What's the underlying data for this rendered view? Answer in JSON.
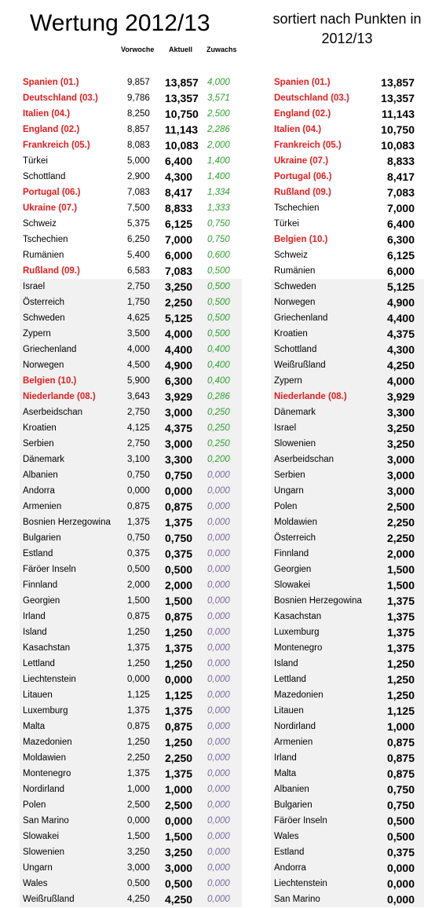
{
  "header": {
    "title": "Wertung 2012/13",
    "subtitle_line1": "sortiert nach Punkten in",
    "subtitle_line2": "2012/13",
    "col_prev": "Vorwoche",
    "col_current": "Aktuell",
    "col_gain": "Zuwachs"
  },
  "colors": {
    "highlight": "#e41e1e",
    "gain_positive": "#2fa12f",
    "gain_zero": "#7a6aa0",
    "shaded_row": "#f1f1f1"
  },
  "left_table": [
    {
      "name": "Spanien (01.)",
      "prev": "9,857",
      "cur": "13,857",
      "gain": "4,000",
      "hl": true
    },
    {
      "name": "Deutschland (03.)",
      "prev": "9,786",
      "cur": "13,357",
      "gain": "3,571",
      "hl": true
    },
    {
      "name": "Italien (04.)",
      "prev": "8,250",
      "cur": "10,750",
      "gain": "2,500",
      "hl": true
    },
    {
      "name": "England (02.)",
      "prev": "8,857",
      "cur": "11,143",
      "gain": "2,286",
      "hl": true
    },
    {
      "name": "Frankreich (05.)",
      "prev": "8,083",
      "cur": "10,083",
      "gain": "2,000",
      "hl": true
    },
    {
      "name": "Türkei",
      "prev": "5,000",
      "cur": "6,400",
      "gain": "1,400",
      "hl": false
    },
    {
      "name": "Schottland",
      "prev": "2,900",
      "cur": "4,300",
      "gain": "1,400",
      "hl": false
    },
    {
      "name": "Portugal (06.)",
      "prev": "7,083",
      "cur": "8,417",
      "gain": "1,334",
      "hl": true
    },
    {
      "name": "Ukraine (07.)",
      "prev": "7,500",
      "cur": "8,833",
      "gain": "1,333",
      "hl": true
    },
    {
      "name": "Schweiz",
      "prev": "5,375",
      "cur": "6,125",
      "gain": "0,750",
      "hl": false
    },
    {
      "name": "Tschechien",
      "prev": "6,250",
      "cur": "7,000",
      "gain": "0,750",
      "hl": false
    },
    {
      "name": "Rumänien",
      "prev": "5,400",
      "cur": "6,000",
      "gain": "0,600",
      "hl": false
    },
    {
      "name": "Rußland (09.)",
      "prev": "6,583",
      "cur": "7,083",
      "gain": "0,500",
      "hl": true
    },
    {
      "name": "Israel",
      "prev": "2,750",
      "cur": "3,250",
      "gain": "0,500",
      "hl": false
    },
    {
      "name": "Österreich",
      "prev": "1,750",
      "cur": "2,250",
      "gain": "0,500",
      "hl": false
    },
    {
      "name": "Schweden",
      "prev": "4,625",
      "cur": "5,125",
      "gain": "0,500",
      "hl": false
    },
    {
      "name": "Zypern",
      "prev": "3,500",
      "cur": "4,000",
      "gain": "0,500",
      "hl": false
    },
    {
      "name": "Griechenland",
      "prev": "4,000",
      "cur": "4,400",
      "gain": "0,400",
      "hl": false
    },
    {
      "name": "Norwegen",
      "prev": "4,500",
      "cur": "4,900",
      "gain": "0,400",
      "hl": false
    },
    {
      "name": "Belgien (10.)",
      "prev": "5,900",
      "cur": "6,300",
      "gain": "0,400",
      "hl": true
    },
    {
      "name": "Niederlande (08.)",
      "prev": "3,643",
      "cur": "3,929",
      "gain": "0,286",
      "hl": true
    },
    {
      "name": "Aserbeidschan",
      "prev": "2,750",
      "cur": "3,000",
      "gain": "0,250",
      "hl": false
    },
    {
      "name": "Kroatien",
      "prev": "4,125",
      "cur": "4,375",
      "gain": "0,250",
      "hl": false
    },
    {
      "name": "Serbien",
      "prev": "2,750",
      "cur": "3,000",
      "gain": "0,250",
      "hl": false
    },
    {
      "name": "Dänemark",
      "prev": "3,100",
      "cur": "3,300",
      "gain": "0,200",
      "hl": false
    },
    {
      "name": "Albanien",
      "prev": "0,750",
      "cur": "0,750",
      "gain": "0,000",
      "hl": false
    },
    {
      "name": "Andorra",
      "prev": "0,000",
      "cur": "0,000",
      "gain": "0,000",
      "hl": false
    },
    {
      "name": "Armenien",
      "prev": "0,875",
      "cur": "0,875",
      "gain": "0,000",
      "hl": false
    },
    {
      "name": "Bosnien Herzegowina",
      "prev": "1,375",
      "cur": "1,375",
      "gain": "0,000",
      "hl": false
    },
    {
      "name": "Bulgarien",
      "prev": "0,750",
      "cur": "0,750",
      "gain": "0,000",
      "hl": false
    },
    {
      "name": "Estland",
      "prev": "0,375",
      "cur": "0,375",
      "gain": "0,000",
      "hl": false
    },
    {
      "name": "Färöer Inseln",
      "prev": "0,500",
      "cur": "0,500",
      "gain": "0,000",
      "hl": false
    },
    {
      "name": "Finnland",
      "prev": "2,000",
      "cur": "2,000",
      "gain": "0,000",
      "hl": false
    },
    {
      "name": "Georgien",
      "prev": "1,500",
      "cur": "1,500",
      "gain": "0,000",
      "hl": false
    },
    {
      "name": "Irland",
      "prev": "0,875",
      "cur": "0,875",
      "gain": "0,000",
      "hl": false
    },
    {
      "name": "Island",
      "prev": "1,250",
      "cur": "1,250",
      "gain": "0,000",
      "hl": false
    },
    {
      "name": "Kasachstan",
      "prev": "1,375",
      "cur": "1,375",
      "gain": "0,000",
      "hl": false
    },
    {
      "name": "Lettland",
      "prev": "1,250",
      "cur": "1,250",
      "gain": "0,000",
      "hl": false
    },
    {
      "name": "Liechtenstein",
      "prev": "0,000",
      "cur": "0,000",
      "gain": "0,000",
      "hl": false
    },
    {
      "name": "Litauen",
      "prev": "1,125",
      "cur": "1,125",
      "gain": "0,000",
      "hl": false
    },
    {
      "name": "Luxemburg",
      "prev": "1,375",
      "cur": "1,375",
      "gain": "0,000",
      "hl": false
    },
    {
      "name": "Malta",
      "prev": "0,875",
      "cur": "0,875",
      "gain": "0,000",
      "hl": false
    },
    {
      "name": "Mazedonien",
      "prev": "1,250",
      "cur": "1,250",
      "gain": "0,000",
      "hl": false
    },
    {
      "name": "Moldawien",
      "prev": "2,250",
      "cur": "2,250",
      "gain": "0,000",
      "hl": false
    },
    {
      "name": "Montenegro",
      "prev": "1,375",
      "cur": "1,375",
      "gain": "0,000",
      "hl": false
    },
    {
      "name": "Nordirland",
      "prev": "1,000",
      "cur": "1,000",
      "gain": "0,000",
      "hl": false
    },
    {
      "name": "Polen",
      "prev": "2,500",
      "cur": "2,500",
      "gain": "0,000",
      "hl": false
    },
    {
      "name": "San Marino",
      "prev": "0,000",
      "cur": "0,000",
      "gain": "0,000",
      "hl": false
    },
    {
      "name": "Slowakei",
      "prev": "1,500",
      "cur": "1,500",
      "gain": "0,000",
      "hl": false
    },
    {
      "name": "Slowenien",
      "prev": "3,250",
      "cur": "3,250",
      "gain": "0,000",
      "hl": false
    },
    {
      "name": "Ungarn",
      "prev": "3,000",
      "cur": "3,000",
      "gain": "0,000",
      "hl": false
    },
    {
      "name": "Wales",
      "prev": "0,500",
      "cur": "0,500",
      "gain": "0,000",
      "hl": false
    },
    {
      "name": "Weißrußland",
      "prev": "4,250",
      "cur": "4,250",
      "gain": "0,000",
      "hl": false
    }
  ],
  "right_table": [
    {
      "name": "Spanien (01.)",
      "value": "13,857",
      "hl": true
    },
    {
      "name": "Deutschland (03.)",
      "value": "13,357",
      "hl": true
    },
    {
      "name": "England (02.)",
      "value": "11,143",
      "hl": true
    },
    {
      "name": "Italien (04.)",
      "value": "10,750",
      "hl": true
    },
    {
      "name": "Frankreich (05.)",
      "value": "10,083",
      "hl": true
    },
    {
      "name": "Ukraine (07.)",
      "value": "8,833",
      "hl": true
    },
    {
      "name": "Portugal (06.)",
      "value": "8,417",
      "hl": true
    },
    {
      "name": "Rußland (09.)",
      "value": "7,083",
      "hl": true
    },
    {
      "name": "Tschechien",
      "value": "7,000",
      "hl": false
    },
    {
      "name": "Türkei",
      "value": "6,400",
      "hl": false
    },
    {
      "name": "Belgien (10.)",
      "value": "6,300",
      "hl": true
    },
    {
      "name": "Schweiz",
      "value": "6,125",
      "hl": false
    },
    {
      "name": "Rumänien",
      "value": "6,000",
      "hl": false
    },
    {
      "name": "Schweden",
      "value": "5,125",
      "hl": false
    },
    {
      "name": "Norwegen",
      "value": "4,900",
      "hl": false
    },
    {
      "name": "Griechenland",
      "value": "4,400",
      "hl": false
    },
    {
      "name": "Kroatien",
      "value": "4,375",
      "hl": false
    },
    {
      "name": "Schottland",
      "value": "4,300",
      "hl": false
    },
    {
      "name": "Weißrußland",
      "value": "4,250",
      "hl": false
    },
    {
      "name": "Zypern",
      "value": "4,000",
      "hl": false
    },
    {
      "name": "Niederlande (08.)",
      "value": "3,929",
      "hl": true
    },
    {
      "name": "Dänemark",
      "value": "3,300",
      "hl": false
    },
    {
      "name": "Israel",
      "value": "3,250",
      "hl": false
    },
    {
      "name": "Slowenien",
      "value": "3,250",
      "hl": false
    },
    {
      "name": "Aserbeidschan",
      "value": "3,000",
      "hl": false
    },
    {
      "name": "Serbien",
      "value": "3,000",
      "hl": false
    },
    {
      "name": "Ungarn",
      "value": "3,000",
      "hl": false
    },
    {
      "name": "Polen",
      "value": "2,500",
      "hl": false
    },
    {
      "name": "Moldawien",
      "value": "2,250",
      "hl": false
    },
    {
      "name": "Österreich",
      "value": "2,250",
      "hl": false
    },
    {
      "name": "Finnland",
      "value": "2,000",
      "hl": false
    },
    {
      "name": "Georgien",
      "value": "1,500",
      "hl": false
    },
    {
      "name": "Slowakei",
      "value": "1,500",
      "hl": false
    },
    {
      "name": "Bosnien Herzegowina",
      "value": "1,375",
      "hl": false
    },
    {
      "name": "Kasachstan",
      "value": "1,375",
      "hl": false
    },
    {
      "name": "Luxemburg",
      "value": "1,375",
      "hl": false
    },
    {
      "name": "Montenegro",
      "value": "1,375",
      "hl": false
    },
    {
      "name": "Island",
      "value": "1,250",
      "hl": false
    },
    {
      "name": "Lettland",
      "value": "1,250",
      "hl": false
    },
    {
      "name": "Mazedonien",
      "value": "1,250",
      "hl": false
    },
    {
      "name": "Litauen",
      "value": "1,125",
      "hl": false
    },
    {
      "name": "Nordirland",
      "value": "1,000",
      "hl": false
    },
    {
      "name": "Armenien",
      "value": "0,875",
      "hl": false
    },
    {
      "name": "Irland",
      "value": "0,875",
      "hl": false
    },
    {
      "name": "Malta",
      "value": "0,875",
      "hl": false
    },
    {
      "name": "Albanien",
      "value": "0,750",
      "hl": false
    },
    {
      "name": "Bulgarien",
      "value": "0,750",
      "hl": false
    },
    {
      "name": "Färöer Inseln",
      "value": "0,500",
      "hl": false
    },
    {
      "name": "Wales",
      "value": "0,500",
      "hl": false
    },
    {
      "name": "Estland",
      "value": "0,375",
      "hl": false
    },
    {
      "name": "Andorra",
      "value": "0,000",
      "hl": false
    },
    {
      "name": "Liechtenstein",
      "value": "0,000",
      "hl": false
    },
    {
      "name": "San Marino",
      "value": "0,000",
      "hl": false
    }
  ]
}
